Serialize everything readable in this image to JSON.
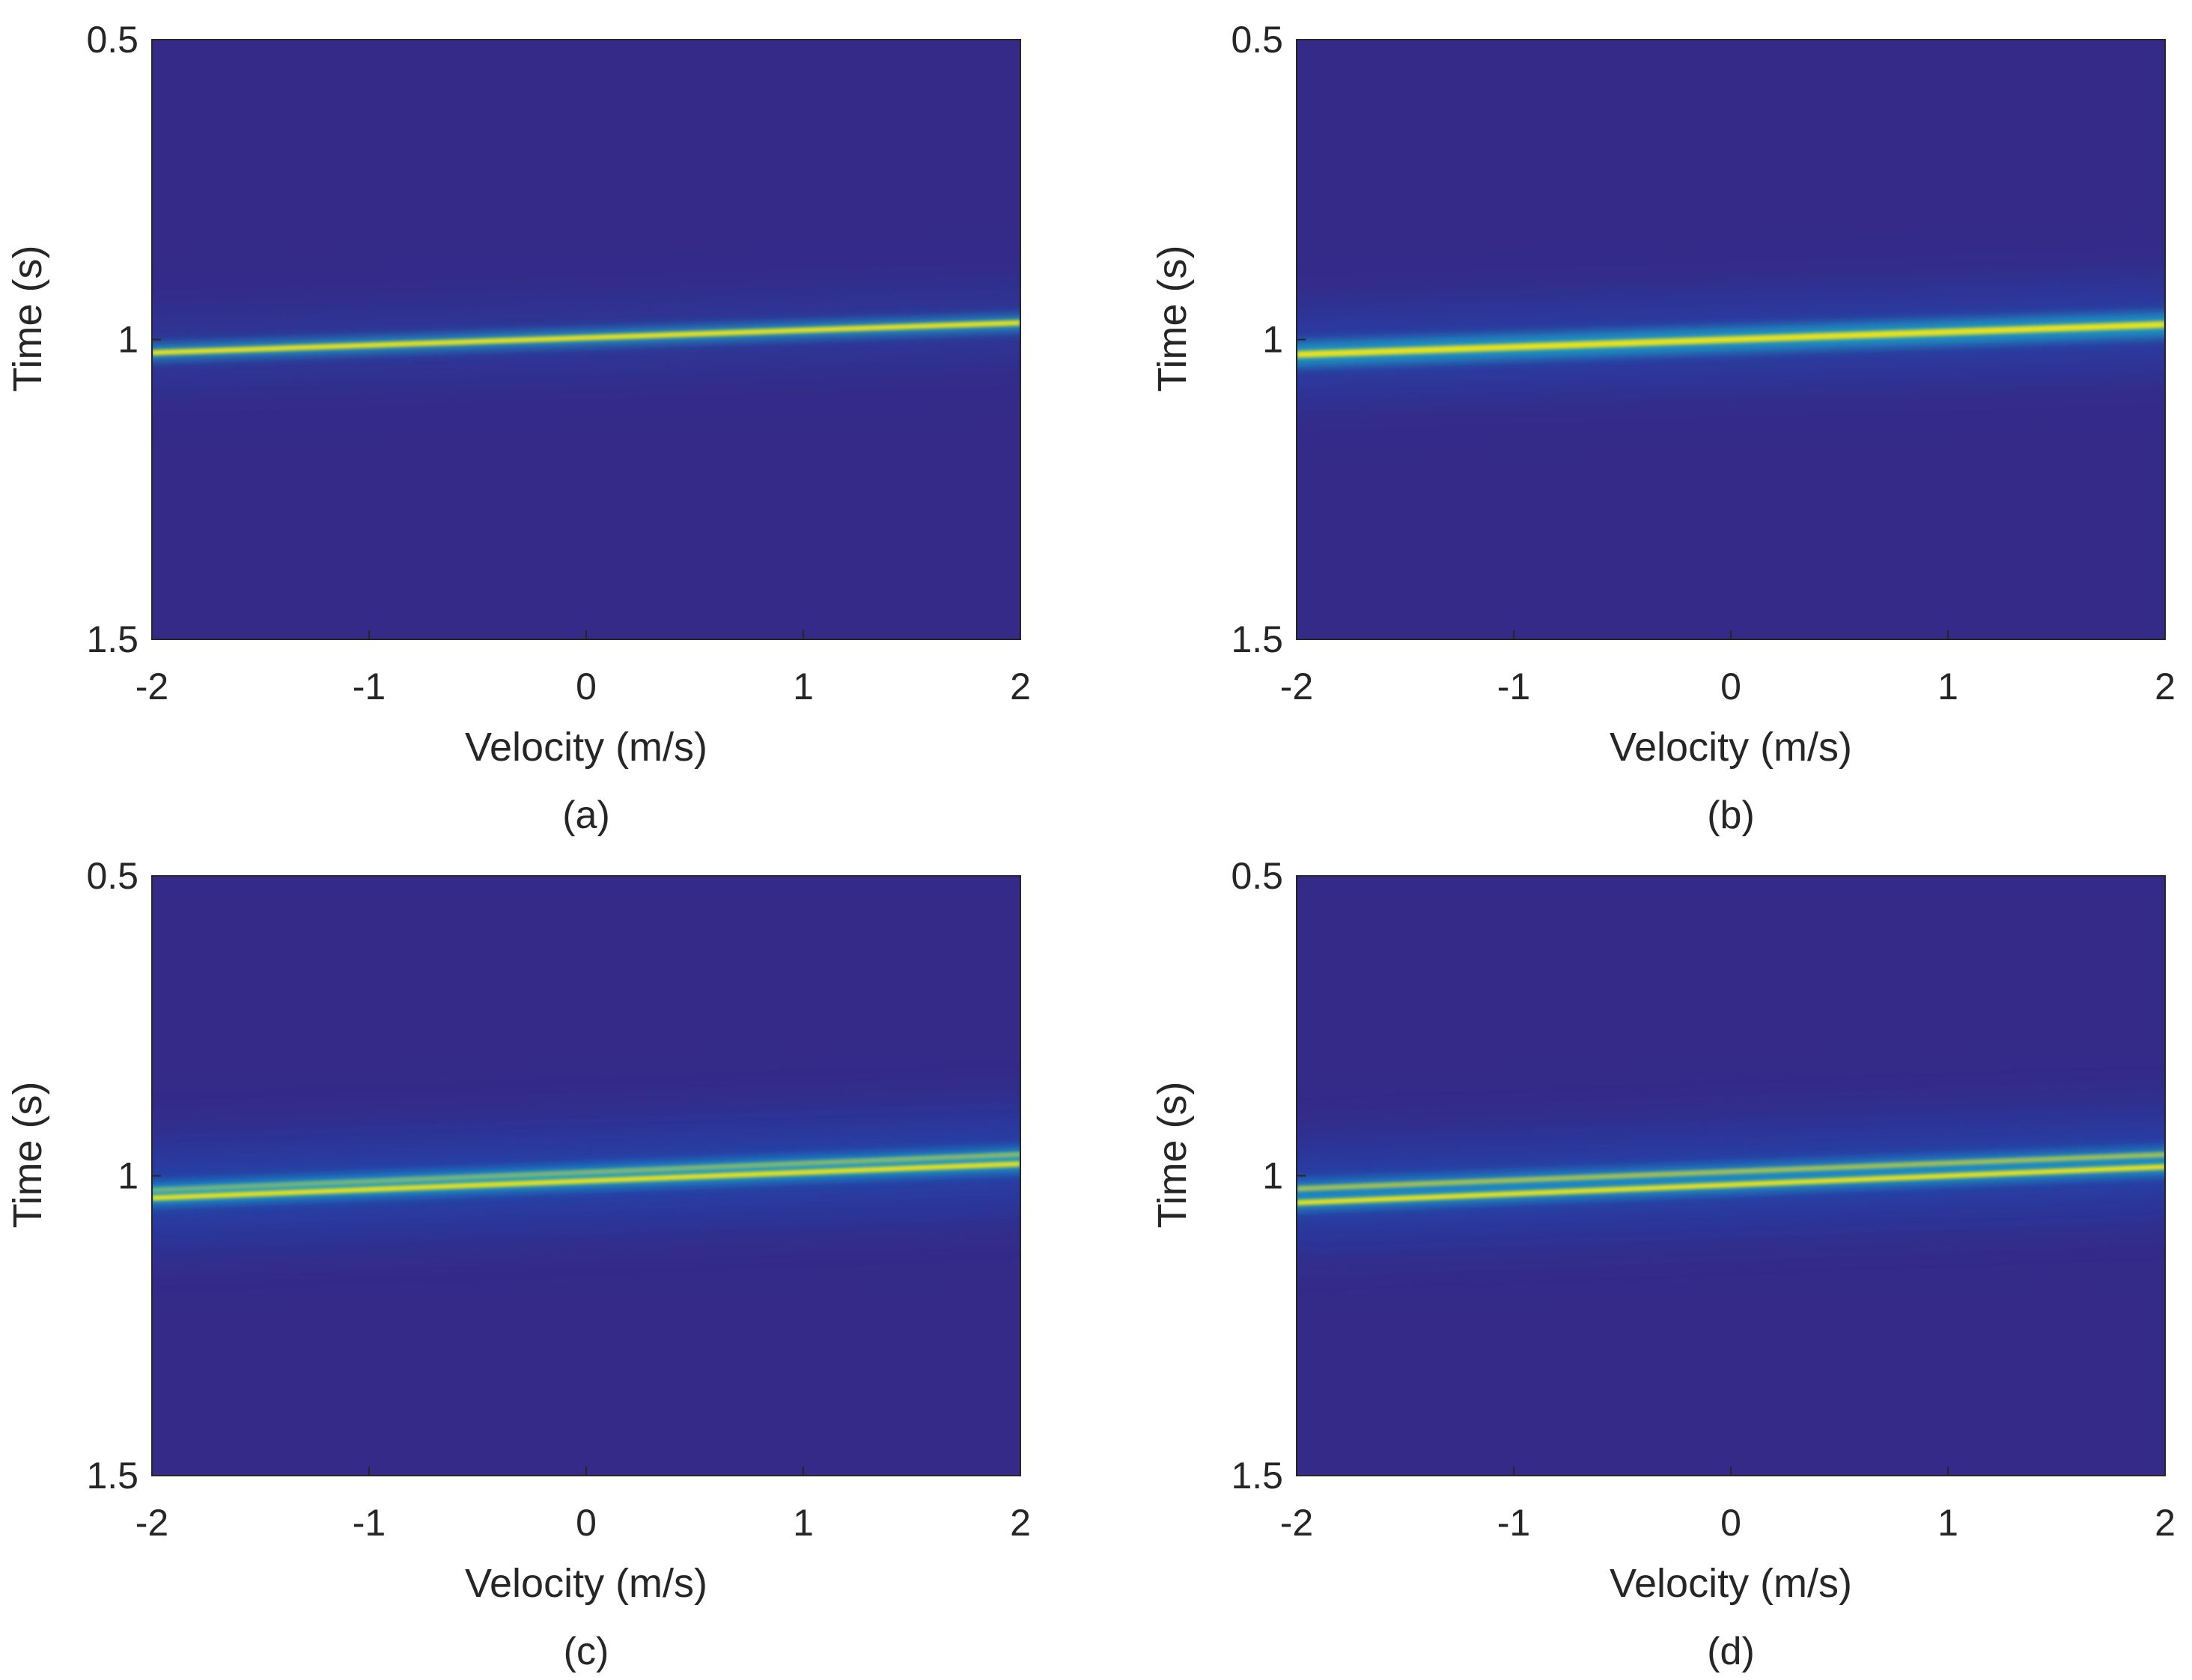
{
  "figure": {
    "colors": {
      "background_field": "#352a87",
      "glow": "#1560d3",
      "ridge_mid": "#1fa5c8",
      "ridge_core": "#e7e21c",
      "axis": "#262626"
    }
  },
  "chart_data": [
    {
      "type": "heatmap",
      "panel_label": "(a)",
      "xlabel": "Velocity (m/s)",
      "ylabel": "Time (s)",
      "xlim": [
        -2,
        2
      ],
      "ylim": [
        0.5,
        1.5
      ],
      "y_reversed": true,
      "xticks": [
        -2,
        -1,
        0,
        1,
        2
      ],
      "yticks": [
        0.5,
        1,
        1.5
      ],
      "xtick_labels": [
        "-2",
        "-1",
        "0",
        "1",
        "2"
      ],
      "ytick_labels": [
        "0.5",
        "1",
        "1.5"
      ],
      "ridges": [
        {
          "time_at_v_min": 1.022,
          "time_at_v_max": 0.972
        }
      ],
      "ridge_strength": 1.0,
      "glow_spread_s": 0.17
    },
    {
      "type": "heatmap",
      "panel_label": "(b)",
      "xlabel": "Velocity (m/s)",
      "ylabel": "Time (s)",
      "xlim": [
        -2,
        2
      ],
      "ylim": [
        0.5,
        1.5
      ],
      "y_reversed": true,
      "xticks": [
        -2,
        -1,
        0,
        1,
        2
      ],
      "yticks": [
        0.5,
        1,
        1.5
      ],
      "xtick_labels": [
        "-2",
        "-1",
        "0",
        "1",
        "2"
      ],
      "ytick_labels": [
        "0.5",
        "1",
        "1.5"
      ],
      "ridges": [
        {
          "time_at_v_min": 1.025,
          "time_at_v_max": 0.975
        }
      ],
      "ridge_strength": 1.6,
      "glow_spread_s": 0.2
    },
    {
      "type": "heatmap",
      "panel_label": "(c)",
      "xlabel": "Velocity (m/s)",
      "ylabel": "Time (s)",
      "xlim": [
        -2,
        2
      ],
      "ylim": [
        0.5,
        1.5
      ],
      "y_reversed": true,
      "xticks": [
        -2,
        -1,
        0,
        1,
        2
      ],
      "yticks": [
        0.5,
        1,
        1.5
      ],
      "xtick_labels": [
        "-2",
        "-1",
        "0",
        "1",
        "2"
      ],
      "ytick_labels": [
        "0.5",
        "1",
        "1.5"
      ],
      "ridges": [
        {
          "time_at_v_min": 1.025,
          "time_at_v_max": 0.965
        },
        {
          "time_at_v_min": 1.037,
          "time_at_v_max": 0.98
        }
      ],
      "ridge_strength": 1.0,
      "glow_spread_s": 0.22
    },
    {
      "type": "heatmap",
      "panel_label": "(d)",
      "xlabel": "Velocity (m/s)",
      "ylabel": "Time (s)",
      "xlim": [
        -2,
        2
      ],
      "ylim": [
        0.5,
        1.5
      ],
      "y_reversed": true,
      "xticks": [
        -2,
        -1,
        0,
        1,
        2
      ],
      "yticks": [
        0.5,
        1,
        1.5
      ],
      "xtick_labels": [
        "-2",
        "-1",
        "0",
        "1",
        "2"
      ],
      "ytick_labels": [
        "0.5",
        "1",
        "1.5"
      ],
      "ridges": [
        {
          "time_at_v_min": 1.022,
          "time_at_v_max": 0.965
        },
        {
          "time_at_v_min": 1.045,
          "time_at_v_max": 0.985
        }
      ],
      "ridge_strength": 1.0,
      "glow_spread_s": 0.22
    }
  ]
}
